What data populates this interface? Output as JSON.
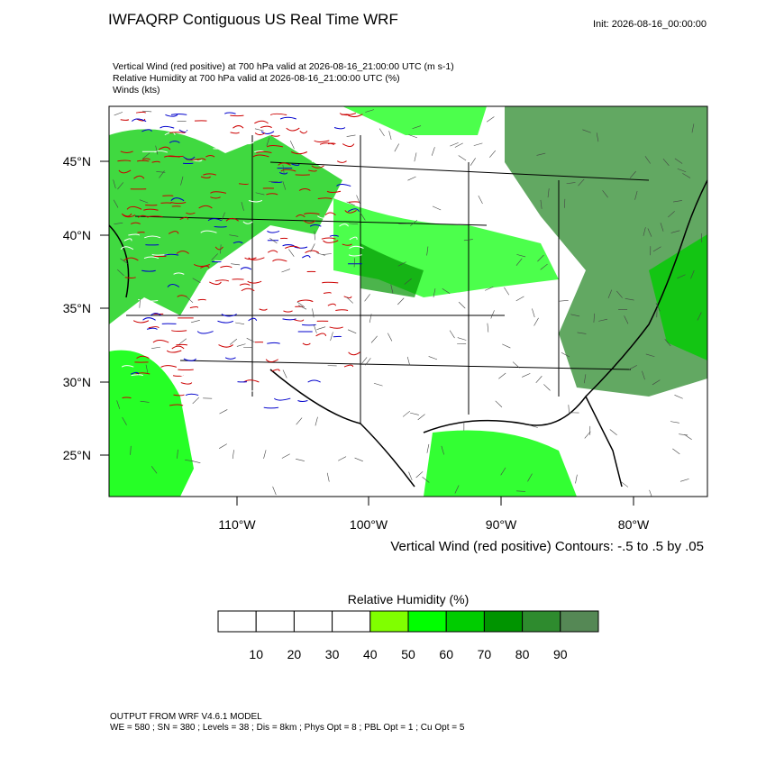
{
  "header": {
    "title": "IWFAQRP Contiguous US Real Time WRF",
    "init": "Init: 2026-08-16_00:00:00",
    "fields": [
      "Vertical Wind (red positive) at 700 hPa valid at 2026-08-16_21:00:00 UTC   (m s-1)",
      "Relative Humidity at 700 hPa valid at 2026-08-16_21:00:00 UTC   (%)",
      "Winds   (kts)"
    ]
  },
  "map": {
    "lat_labels": [
      "45°N",
      "40°N",
      "35°N",
      "30°N",
      "25°N"
    ],
    "lon_labels": [
      "110°W",
      "100°W",
      "90°W",
      "80°W"
    ],
    "contour_note": "Vertical Wind (red positive) Contours: -.5 to .5 by .05"
  },
  "colorbar": {
    "title": "Relative Humidity  (%)",
    "labels": [
      "10",
      "20",
      "30",
      "40",
      "50",
      "60",
      "70",
      "80",
      "90"
    ],
    "colors": [
      "#ffffff",
      "#ffffff",
      "#ffffff",
      "#ffffff",
      "#80ff00",
      "#00ff00",
      "#00cc00",
      "#009400",
      "#2e8b2e",
      "#558855"
    ]
  },
  "footer": {
    "lines": [
      "OUTPUT FROM WRF V4.6.1 MODEL",
      "WE = 580 ; SN = 380 ; Levels = 38 ; Dis = 8km ; Phys Opt = 8 ; PBL Opt = 1 ; Cu Opt = 5"
    ]
  }
}
